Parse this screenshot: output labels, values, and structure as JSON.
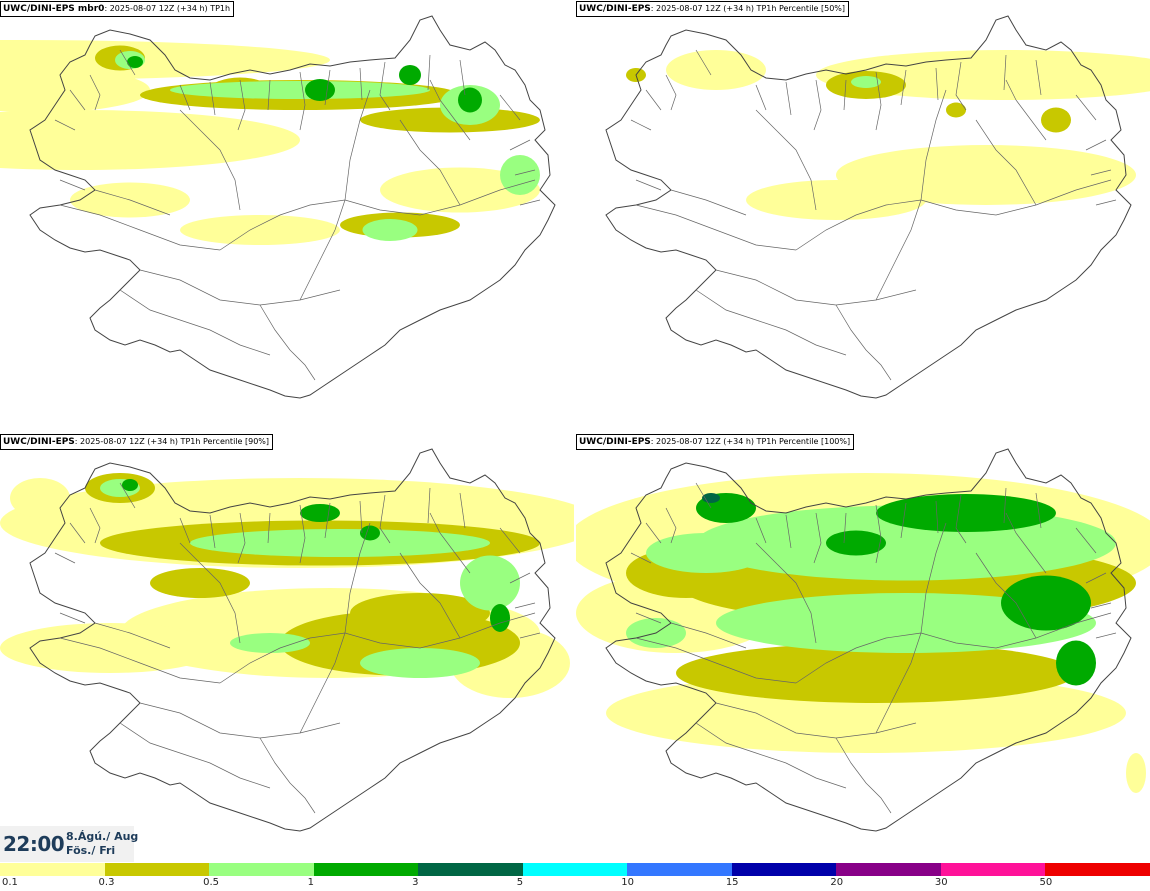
{
  "panels": [
    {
      "source": "UWC/DINI-EPS mbr0",
      "detail": ": 2025-08-07 12Z (+34 h) TP1h",
      "level": 0
    },
    {
      "source": "UWC/DINI-EPS",
      "detail": ": 2025-08-07 12Z (+34 h) TP1h Percentile [50%]",
      "level": 1
    },
    {
      "source": "UWC/DINI-EPS",
      "detail": ": 2025-08-07 12Z (+34 h) TP1h Percentile [90%]",
      "level": 2
    },
    {
      "source": "UWC/DINI-EPS",
      "detail": ": 2025-08-07 12Z (+34 h) TP1h Percentile [100%]",
      "level": 3
    }
  ],
  "time": {
    "clock": "22:00",
    "date_line1": "8.Ágú./ Aug",
    "date_line2": "Fös./ Fri"
  },
  "legend": {
    "colors": [
      "#ffff99",
      "#c8c800",
      "#99ff80",
      "#00aa00",
      "#006644",
      "#00ffff",
      "#3377ff",
      "#0000aa",
      "#880088",
      "#ff1199",
      "#ee0000"
    ],
    "labels": [
      "0.1",
      "0.3",
      "0.5",
      "1",
      "3",
      "5",
      "10",
      "15",
      "20",
      "30",
      "50"
    ]
  }
}
